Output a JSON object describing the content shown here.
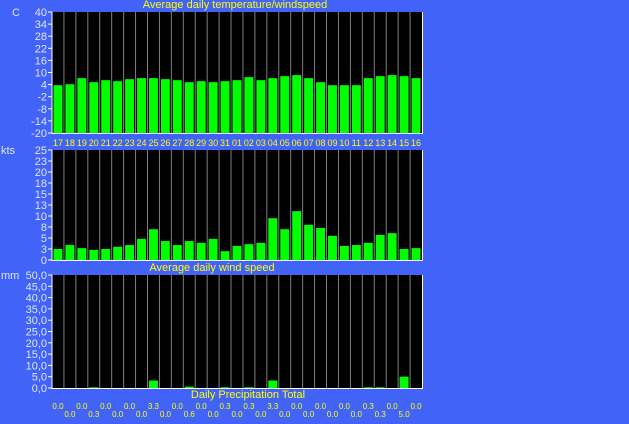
{
  "chart_data": [
    {
      "type": "bar",
      "title": "Average daily temperature/windspeed",
      "ylabel": "C",
      "ylim": [
        -20,
        40
      ],
      "yticks": [
        40,
        34,
        28,
        22,
        16,
        10,
        4,
        -2,
        -8,
        -14,
        -20
      ],
      "categories": [
        "17",
        "18",
        "19",
        "20",
        "21",
        "22",
        "23",
        "24",
        "25",
        "26",
        "27",
        "28",
        "29",
        "30",
        "31",
        "01",
        "02",
        "03",
        "04",
        "05",
        "06",
        "07",
        "08",
        "09",
        "10",
        "11",
        "12",
        "13",
        "14",
        "15",
        "16"
      ],
      "values": [
        3.7,
        4.2,
        7.2,
        5.2,
        6.2,
        5.7,
        6.7,
        7.2,
        7.2,
        6.7,
        6.2,
        5.2,
        5.7,
        5.2,
        5.7,
        6.2,
        7.7,
        6.2,
        7.2,
        8.2,
        8.7,
        7.2,
        5.2,
        3.7,
        3.7,
        3.7,
        7.2,
        8.2,
        8.7,
        8.2,
        7.2
      ],
      "bar_color": "#00ff00",
      "grid": "vertical"
    },
    {
      "type": "bar",
      "title": "Average daily wind speed",
      "ylabel": "kts",
      "ylim": [
        0,
        25
      ],
      "yticks": [
        "25",
        "23",
        "20",
        "18",
        "15",
        "13",
        "10",
        "8",
        "5",
        "3",
        "0"
      ],
      "categories": [
        "17",
        "18",
        "19",
        "20",
        "21",
        "22",
        "23",
        "24",
        "25",
        "26",
        "27",
        "28",
        "29",
        "30",
        "31",
        "01",
        "02",
        "03",
        "04",
        "05",
        "06",
        "07",
        "08",
        "09",
        "10",
        "11",
        "12",
        "13",
        "14",
        "15",
        "16"
      ],
      "values": [
        2.5,
        3.4,
        2.7,
        2.3,
        2.5,
        3.0,
        3.4,
        4.8,
        7.0,
        4.3,
        3.4,
        4.3,
        3.9,
        4.8,
        2.0,
        3.2,
        3.6,
        3.9,
        9.5,
        7.0,
        11.1,
        8.0,
        7.3,
        5.5,
        3.2,
        3.4,
        3.9,
        5.7,
        6.1,
        2.5,
        2.7
      ],
      "bar_color": "#00ff00",
      "grid": "vertical"
    },
    {
      "type": "bar",
      "title": "Daily Precipitation Total",
      "ylabel": "mm",
      "ylim": [
        0,
        50
      ],
      "yticks": [
        "50,0",
        "45,0",
        "40,0",
        "35,0",
        "30,0",
        "25,0",
        "20,0",
        "15,0",
        "10,0",
        "5,0",
        "0,0"
      ],
      "values": [
        0.0,
        0.0,
        0.0,
        0.3,
        0.0,
        0.0,
        0.0,
        0.0,
        3.3,
        0.0,
        0.0,
        0.6,
        0.0,
        0.0,
        0.3,
        0.0,
        0.3,
        0.0,
        3.3,
        0.0,
        0.0,
        0.0,
        0.0,
        0.0,
        0.0,
        0.0,
        0.3,
        0.3,
        0.0,
        5.0,
        0.0
      ],
      "data_labels": [
        "0.0",
        "0.0",
        "0.0",
        "0.3",
        "0.0",
        "0.0",
        "0.0",
        "0.0",
        "3.3",
        "0.0",
        "0.0",
        "0.6",
        "0.0",
        "0.0",
        "0.3",
        "0.0",
        "0.3",
        "0.0",
        "3.3",
        "0.0",
        "0.0",
        "0.0",
        "0.0",
        "0.0",
        "0.0",
        "0.0",
        "0.3",
        "0.3",
        "0.0",
        "5.0",
        "0.0"
      ],
      "bar_color": "#00ff00",
      "grid": "vertical"
    }
  ],
  "colors": {
    "background": "#4263f7",
    "plot": "#000000",
    "grid": "#808080",
    "axis": "#ffffff",
    "title": "#ffff00",
    "ytick": "#dfe6ff"
  }
}
